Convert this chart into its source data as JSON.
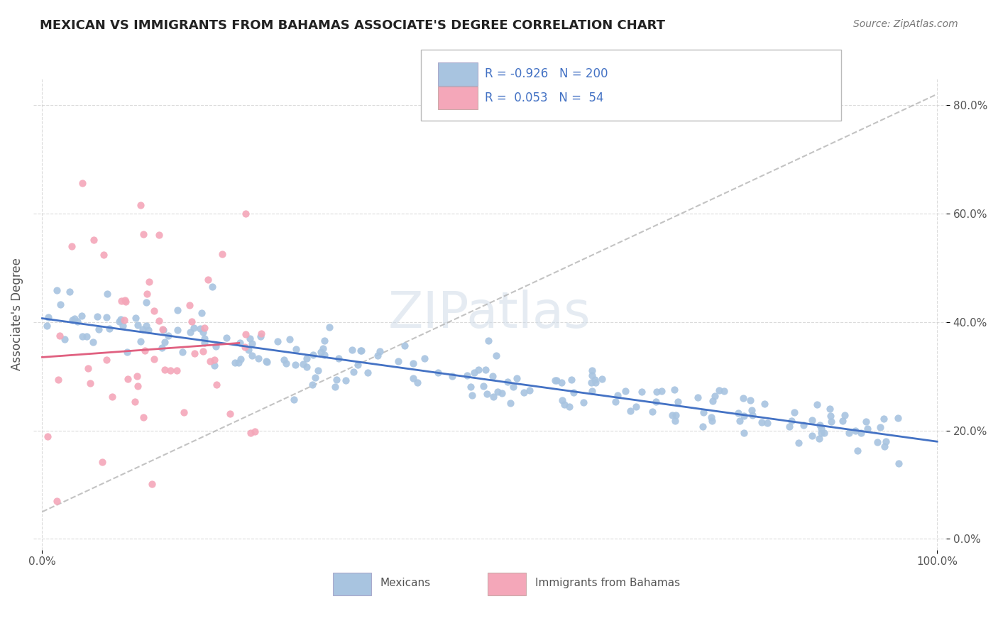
{
  "title": "MEXICAN VS IMMIGRANTS FROM BAHAMAS ASSOCIATE'S DEGREE CORRELATION CHART",
  "source": "Source: ZipAtlas.com",
  "ylabel": "Associate's Degree",
  "xlabel": "",
  "watermark": "ZIPatlas",
  "legend_r1": "R = -0.926",
  "legend_n1": "N = 200",
  "legend_r2": "R =  0.053",
  "legend_n2": "N =  54",
  "blue_color": "#a8c4e0",
  "blue_line_color": "#4472c4",
  "pink_color": "#f4a7b9",
  "pink_line_color": "#e06080",
  "legend_text_color": "#4472c4",
  "xmin": 0.0,
  "xmax": 1.0,
  "ymin": 0.0,
  "ymax": 0.85,
  "ytick_labels": [
    "0.0%",
    "20.0%",
    "40.0%",
    "60.0%",
    "80.0%"
  ],
  "ytick_values": [
    0.0,
    0.2,
    0.4,
    0.6,
    0.8
  ],
  "xtick_labels": [
    "0.0%",
    "100.0%"
  ],
  "xtick_values": [
    0.0,
    1.0
  ],
  "blue_scatter_seed": 42,
  "pink_scatter_seed": 7,
  "blue_n": 200,
  "pink_n": 54,
  "blue_R": -0.926,
  "pink_R": 0.053
}
